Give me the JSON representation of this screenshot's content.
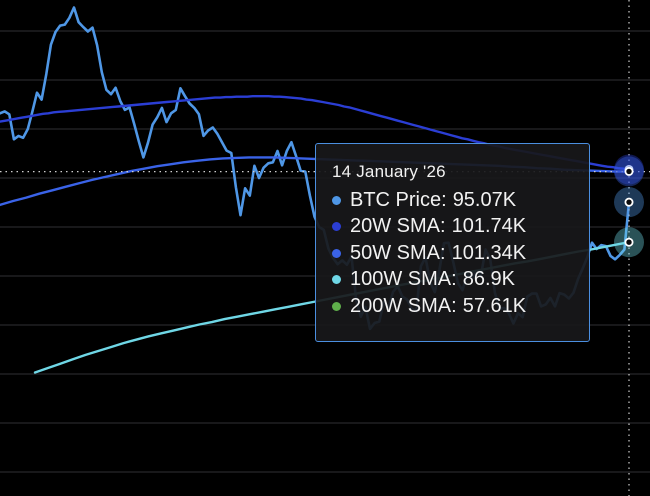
{
  "chart_data": {
    "type": "line",
    "title": "",
    "xlabel": "",
    "ylabel": "",
    "x_end": "14 January '26",
    "ylim": [
      40,
      140
    ],
    "grid": "horizontal",
    "crosshair": {
      "horizontal_value": 101.3,
      "vertical_at": "14 January '26"
    },
    "series": [
      {
        "name": "BTC Price",
        "color": "#4f97e6",
        "values": [
          113.2,
          113.6,
          113.0,
          107.9,
          108.6,
          108.2,
          110.0,
          113.6,
          117.4,
          116.0,
          121.2,
          127.2,
          129.8,
          131.1,
          131.3,
          132.7,
          134.8,
          131.8,
          130.8,
          129.9,
          130.7,
          127.1,
          121.6,
          118.0,
          117.1,
          118.4,
          115.7,
          113.9,
          114.4,
          111.1,
          107.5,
          104.2,
          107.2,
          110.9,
          112.4,
          114.3,
          111.4,
          113.2,
          113.9,
          118.3,
          116.7,
          115.2,
          114.3,
          113.0,
          108.6,
          109.7,
          110.3,
          109.0,
          107.3,
          105.6,
          105.1,
          98.1,
          92.4,
          97.9,
          96.4,
          102.5,
          100.0,
          102.1,
          103.0,
          103.2,
          105.5,
          102.6,
          105.5,
          107.3,
          104.5,
          101.5,
          101.3,
          96.4,
          92.1,
          90.0,
          89.4,
          85.6,
          83.7,
          82.4,
          83.2,
          82.3,
          84.0,
          75.2,
          71.7,
          73.7,
          69.2,
          70.4,
          70.7,
          74.8,
          73.5,
          76.8,
          77.9,
          75.8,
          75.2,
          73.4,
          72.8,
          82.0,
          83.8,
          78.8,
          76.7,
          81.2,
          86.7,
          86.8,
          82.8,
          78.6,
          77.1,
          80.4,
          79.5,
          80.8,
          80.2,
          85.4,
          83.3,
          76.6,
          73.3,
          73.5,
          72.4,
          70.3,
          72.4,
          71.6,
          75.8,
          76.4,
          76.4,
          73.8,
          74.2,
          75.5,
          73.8,
          76.5,
          76.2,
          75.4,
          76.6,
          79.4,
          81.6,
          83.9,
          86.8,
          85.5,
          86.3,
          86.1,
          84.1,
          83.4,
          84.3,
          85.4,
          95.07
        ]
      },
      {
        "name": "20W SMA",
        "color": "#2b3ed4",
        "values": [
          111.5,
          111.7,
          111.9,
          112.1,
          112.3,
          112.5,
          112.7,
          112.9,
          113.1,
          113.2,
          113.4,
          113.5,
          113.6,
          113.7,
          113.8,
          113.9,
          114.0,
          114.1,
          114.2,
          114.3,
          114.4,
          114.5,
          114.6,
          114.7,
          114.8,
          114.9,
          115.0,
          115.1,
          115.2,
          115.3,
          115.4,
          115.5,
          115.6,
          115.7,
          115.8,
          115.9,
          116.0,
          116.1,
          116.2,
          116.3,
          116.4,
          116.4,
          116.5,
          116.5,
          116.6,
          116.6,
          116.6,
          116.7,
          116.7,
          116.7,
          116.7,
          116.6,
          116.6,
          116.5,
          116.4,
          116.3,
          116.2,
          116.0,
          115.9,
          115.7,
          115.5,
          115.3,
          115.1,
          114.9,
          114.6,
          114.4,
          114.1,
          113.8,
          113.5,
          113.2,
          112.9,
          112.6,
          112.3,
          112.0,
          111.7,
          111.4,
          111.1,
          110.8,
          110.5,
          110.2,
          109.9,
          109.6,
          109.3,
          109.0,
          108.7,
          108.4,
          108.1,
          107.9,
          107.6,
          107.3,
          107.1,
          106.8,
          106.6,
          106.4,
          106.1,
          105.9,
          105.7,
          105.5,
          105.3,
          105.1,
          104.9,
          104.7,
          104.5,
          104.3,
          104.1,
          103.9,
          103.7,
          103.5,
          103.3,
          103.1,
          102.9,
          102.7,
          102.5,
          102.3,
          102.2,
          102.0,
          101.9,
          101.74
        ]
      },
      {
        "name": "50W SMA",
        "color": "#3a63e8",
        "values": [
          94.5,
          95.3,
          96.0,
          96.8,
          97.5,
          98.2,
          98.9,
          99.6,
          100.2,
          100.8,
          101.4,
          101.9,
          102.4,
          102.8,
          103.2,
          103.5,
          103.8,
          104.0,
          104.1,
          104.2,
          104.2,
          104.2,
          104.1,
          104.0,
          103.9,
          103.8,
          103.7,
          103.6,
          103.5,
          103.4,
          103.3,
          103.2,
          103.1,
          103.0,
          102.9,
          102.8,
          102.7,
          102.6,
          102.5,
          102.3,
          102.2,
          102.0,
          101.9,
          101.7,
          101.6,
          101.5,
          101.4,
          101.3,
          101.34
        ]
      },
      {
        "name": "100W SMA",
        "color": "#6fd7e6",
        "values": [
          60.3,
          61.2,
          62.1,
          63.0,
          63.9,
          64.7,
          65.5,
          66.3,
          67.0,
          67.7,
          68.3,
          68.9,
          69.5,
          70.1,
          70.6,
          71.2,
          71.7,
          72.2,
          72.7,
          73.2,
          73.7,
          74.2,
          74.7,
          75.2,
          75.7,
          76.2,
          76.7,
          77.2,
          77.7,
          78.2,
          78.7,
          79.1,
          79.6,
          80.1,
          80.6,
          81.1,
          81.6,
          82.1,
          82.6,
          83.0,
          83.5,
          84.0,
          84.5,
          85.0,
          85.4,
          85.9,
          86.4,
          86.9
        ]
      },
      {
        "name": "200W SMA",
        "color": "#5fae4b",
        "values": [
          57.61
        ]
      }
    ],
    "tooltip": {
      "date": "14 January '26",
      "rows": [
        {
          "label": "BTC Price",
          "value": "95.07K",
          "color": "#4f97e6"
        },
        {
          "label": "20W SMA",
          "value": "101.74K",
          "color": "#2b3ed4"
        },
        {
          "label": "50W SMA",
          "value": "101.34K",
          "color": "#3a63e8"
        },
        {
          "label": "100W SMA",
          "value": "86.9K",
          "color": "#6fd7e6"
        },
        {
          "label": "200W SMA",
          "value": "57.61K",
          "color": "#5fae4b"
        }
      ]
    }
  }
}
